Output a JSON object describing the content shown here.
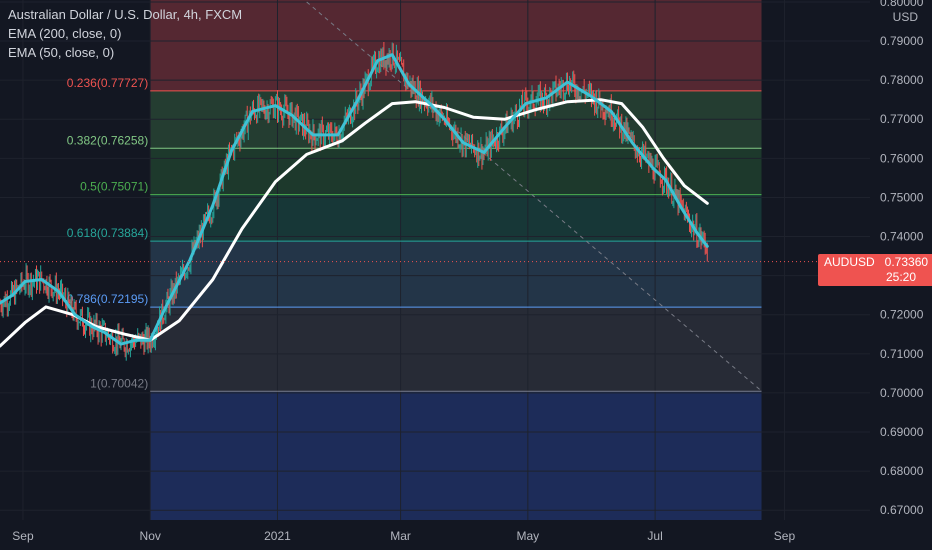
{
  "legend": {
    "title": "Australian Dollar / U.S. Dollar, 4h, FXCM",
    "ind1": "EMA (200, close, 0)",
    "ind2": "EMA (50, close, 0)"
  },
  "price_tag": {
    "symbol": "AUDUSD",
    "price": "0.73360",
    "countdown": "25:20"
  },
  "currency_label": "USD",
  "colors": {
    "background": "#131722",
    "ema200": "#ffffff",
    "ema50": "#3fc1d4",
    "up_candle": "#26a69a",
    "down_candle": "#ef5350",
    "price_tag": "#ef5350"
  },
  "chart_data": {
    "type": "line",
    "y_axis": {
      "range": [
        0.6675,
        0.8005
      ],
      "ticks": [
        "0.80000",
        "0.79000",
        "0.78000",
        "0.77000",
        "0.76000",
        "0.75000",
        "0.74000",
        "0.73000",
        "0.72000",
        "0.71000",
        "0.70000",
        "0.69000",
        "0.68000",
        "0.67000"
      ],
      "tick_values": [
        0.8,
        0.79,
        0.78,
        0.77,
        0.76,
        0.75,
        0.74,
        0.73,
        0.72,
        0.71,
        0.7,
        0.69,
        0.68,
        0.67
      ]
    },
    "x_axis": {
      "ticks": [
        "Sep",
        "Nov",
        "2021",
        "Mar",
        "May",
        "Jul",
        "Sep"
      ],
      "tick_dates": [
        "2020-09-01",
        "2020-11-01",
        "2021-01-01",
        "2021-03-01",
        "2021-05-01",
        "2021-07-01",
        "2021-09-01"
      ],
      "range": [
        "2020-08-21",
        "2021-10-12"
      ]
    },
    "fib_retracement": {
      "start": "2020-11-01",
      "end": "2021-08-21",
      "levels": [
        {
          "label": "0.236(0.77727)",
          "value": 0.77727,
          "color": "#ef5350"
        },
        {
          "label": "0.382(0.76258)",
          "value": 0.76258,
          "color": "#81c784"
        },
        {
          "label": "0.5(0.75071)",
          "value": 0.75071,
          "color": "#4caf50"
        },
        {
          "label": "0.618(0.73884)",
          "value": 0.73884,
          "color": "#26a69a"
        },
        {
          "label": "0.786(0.72195)",
          "value": 0.72195,
          "color": "#5b9cf6"
        },
        {
          "label": "1(0.70042)",
          "value": 0.70042,
          "color": "#787b86"
        }
      ],
      "top": 0.8005,
      "bottom": 0.6675,
      "zones": [
        {
          "from": 0.8005,
          "to": 0.77727,
          "color": "#5d2a34"
        },
        {
          "from": 0.77727,
          "to": 0.76258,
          "color": "#274133"
        },
        {
          "from": 0.76258,
          "to": 0.75071,
          "color": "#1f3d2e"
        },
        {
          "from": 0.75071,
          "to": 0.73884,
          "color": "#183b3a"
        },
        {
          "from": 0.73884,
          "to": 0.72195,
          "color": "#26384d"
        },
        {
          "from": 0.72195,
          "to": 0.70042,
          "color": "#2a2e39"
        },
        {
          "from": 0.70042,
          "to": 0.6675,
          "color": "#1f2f5f"
        }
      ]
    },
    "trend_line": {
      "from": [
        "2021-01-15",
        0.8
      ],
      "to": [
        "2021-08-21",
        0.7005
      ]
    },
    "current_price": 0.7336,
    "series": [
      {
        "name": "EMA (50, close, 0)",
        "x": [
          "2020-08-21",
          "2020-08-27",
          "2020-09-02",
          "2020-09-10",
          "2020-09-18",
          "2020-09-26",
          "2020-10-04",
          "2020-10-10",
          "2020-10-18",
          "2020-10-25",
          "2020-11-01",
          "2020-11-08",
          "2020-11-20",
          "2020-12-01",
          "2020-12-10",
          "2020-12-20",
          "2020-12-31",
          "2021-01-08",
          "2021-01-18",
          "2021-01-30",
          "2021-02-08",
          "2021-02-18",
          "2021-02-25",
          "2021-03-05",
          "2021-03-15",
          "2021-03-22",
          "2021-03-31",
          "2021-04-10",
          "2021-04-20",
          "2021-04-30",
          "2021-05-10",
          "2021-05-20",
          "2021-05-31",
          "2021-06-10",
          "2021-06-20",
          "2021-06-30",
          "2021-07-06",
          "2021-07-14",
          "2021-07-21",
          "2021-07-26"
        ],
        "values": [
          0.723,
          0.725,
          0.7285,
          0.729,
          0.726,
          0.72,
          0.717,
          0.7155,
          0.7125,
          0.7135,
          0.7135,
          0.7215,
          0.734,
          0.748,
          0.762,
          0.772,
          0.7735,
          0.771,
          0.766,
          0.766,
          0.7745,
          0.785,
          0.7865,
          0.779,
          0.774,
          0.77,
          0.764,
          0.7615,
          0.768,
          0.774,
          0.7755,
          0.7795,
          0.776,
          0.772,
          0.764,
          0.7575,
          0.7545,
          0.747,
          0.741,
          0.7375
        ]
      },
      {
        "name": "EMA (200, close, 0)",
        "x": [
          "2020-08-21",
          "2020-09-02",
          "2020-09-12",
          "2020-09-25",
          "2020-10-06",
          "2020-10-20",
          "2020-11-01",
          "2020-11-15",
          "2020-12-01",
          "2020-12-15",
          "2020-12-31",
          "2021-01-15",
          "2021-02-01",
          "2021-02-12",
          "2021-02-25",
          "2021-03-08",
          "2021-03-22",
          "2021-04-05",
          "2021-04-20",
          "2021-05-05",
          "2021-05-20",
          "2021-06-05",
          "2021-06-15",
          "2021-06-25",
          "2021-07-05",
          "2021-07-15",
          "2021-07-26"
        ],
        "values": [
          0.712,
          0.718,
          0.722,
          0.72,
          0.717,
          0.715,
          0.7135,
          0.7185,
          0.729,
          0.742,
          0.754,
          0.761,
          0.7645,
          0.769,
          0.774,
          0.7745,
          0.773,
          0.7705,
          0.77,
          0.7725,
          0.7745,
          0.775,
          0.774,
          0.768,
          0.76,
          0.753,
          0.7485
        ]
      }
    ]
  }
}
